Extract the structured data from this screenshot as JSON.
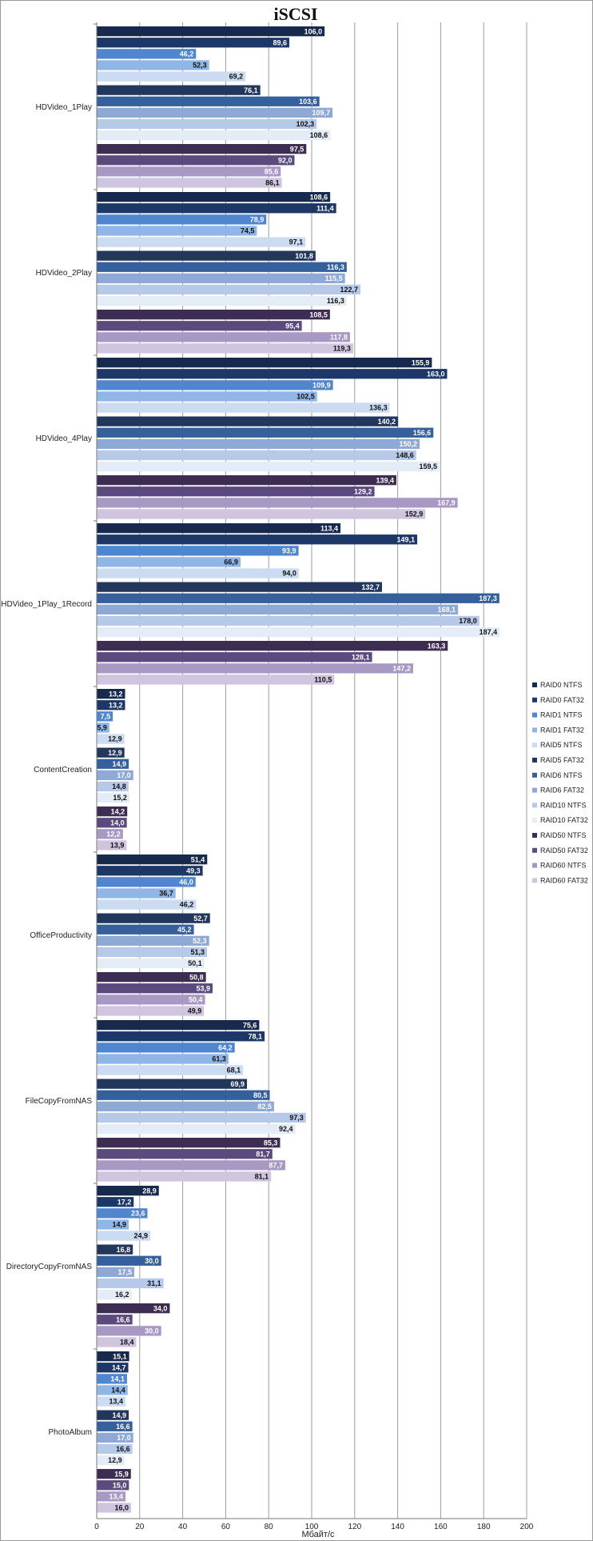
{
  "chart_data": {
    "type": "bar",
    "orientation": "horizontal",
    "title": "iSCSI",
    "xlabel": "Мбайт/с",
    "ylabel": "",
    "xlim": [
      0,
      200
    ],
    "xticks": [
      0,
      20,
      40,
      60,
      80,
      100,
      120,
      140,
      160,
      180,
      200
    ],
    "grid": true,
    "legend_position": "right",
    "categories": [
      "HDVideo_1Play",
      "HDVideo_2Play",
      "HDVideo_4Play",
      "HDVideo_1Play_1Record",
      "ContentCreation",
      "OfficeProductivity",
      "FileCopyFromNAS",
      "DirectoryCopyFromNAS",
      "PhotoAlbum"
    ],
    "series": [
      {
        "name": "RAID0 NTFS",
        "color": "#17294d",
        "label_color": "#ffffff",
        "values": [
          "106,0",
          "108,6",
          "155,9",
          "113,4",
          "13,2",
          "51,4",
          "75,6",
          "28,9",
          "15,1"
        ]
      },
      {
        "name": "RAID0 FAT32",
        "color": "#1d3868",
        "label_color": "#ffffff",
        "values": [
          "89,6",
          "111,4",
          "163,0",
          "149,1",
          "13,2",
          "49,3",
          "78,1",
          "17,2",
          "14,7"
        ]
      },
      {
        "name": "RAID1 NTFS",
        "color": "#4f86cf",
        "label_color": "#ffffff",
        "values": [
          "46,2",
          "78,9",
          "109,9",
          "93,9",
          "7,5",
          "46,0",
          "64,2",
          "23,6",
          "14,1"
        ]
      },
      {
        "name": "RAID1 FAT32",
        "color": "#8fb6e6",
        "label_color": "#111111",
        "values": [
          "52,3",
          "74,5",
          "102,5",
          "66,9",
          "5,9",
          "36,7",
          "61,3",
          "14,9",
          "14,4"
        ]
      },
      {
        "name": "RAID5 NTFS",
        "color": "#cbdcf2",
        "label_color": "#111111",
        "values": [
          "69,2",
          "97,1",
          "136,3",
          "94,0",
          "12,9",
          "46,2",
          "68,1",
          "24,9",
          "13,4"
        ]
      },
      {
        "name": "RAID5 FAT32",
        "color": "#23375d",
        "label_color": "#ffffff",
        "values": [
          "76,1",
          "101,8",
          "140,2",
          "132,7",
          "12,9",
          "52,7",
          "69,9",
          "16,8",
          "14,9"
        ]
      },
      {
        "name": "RAID6 NTFS",
        "color": "#36609c",
        "label_color": "#ffffff",
        "values": [
          "103,6",
          "116,3",
          "156,6",
          "187,3",
          "14,9",
          "45,2",
          "80,5",
          "30,0",
          "16,6"
        ]
      },
      {
        "name": "RAID6 FAT32",
        "color": "#8fa9d6",
        "label_color": "#ffffff",
        "values": [
          "109,7",
          "115,5",
          "150,2",
          "168,1",
          "17,0",
          "52,3",
          "82,5",
          "17,5",
          "17,0"
        ]
      },
      {
        "name": "RAID10 NTFS",
        "color": "#b7c9e8",
        "label_color": "#111111",
        "values": [
          "102,3",
          "122,7",
          "148,6",
          "178,0",
          "14,8",
          "51,3",
          "97,3",
          "31,1",
          "16,6"
        ]
      },
      {
        "name": "RAID10 FAT32",
        "color": "#e4ecf7",
        "label_color": "#111111",
        "values": [
          "108,6",
          "116,3",
          "159,5",
          "187,4",
          "15,2",
          "50,1",
          "92,4",
          "16,2",
          "12,9"
        ]
      },
      {
        "name": "RAID50 NTFS",
        "color": "#3d2d52",
        "label_color": "#ffffff",
        "values": [
          "97,5",
          "108,5",
          "139,4",
          "163,3",
          "14,2",
          "50,8",
          "85,3",
          "34,0",
          "15,9"
        ]
      },
      {
        "name": "RAID50 FAT32",
        "color": "#5c4a7e",
        "label_color": "#ffffff",
        "values": [
          "92,0",
          "95,4",
          "129,2",
          "128,1",
          "14,0",
          "53,9",
          "81,7",
          "16,6",
          "15,0"
        ]
      },
      {
        "name": "RAID60 NTFS",
        "color": "#a898c4",
        "label_color": "#ffffff",
        "values": [
          "85,6",
          "117,8",
          "167,9",
          "147,2",
          "12,2",
          "50,4",
          "87,7",
          "30,0",
          "13,4"
        ]
      },
      {
        "name": "RAID60 FAT32",
        "color": "#cfc5df",
        "label_color": "#111111",
        "values": [
          "86,1",
          "119,3",
          "152,9",
          "110,5",
          "13,9",
          "49,9",
          "81,1",
          "18,4",
          "16,0"
        ]
      }
    ]
  }
}
